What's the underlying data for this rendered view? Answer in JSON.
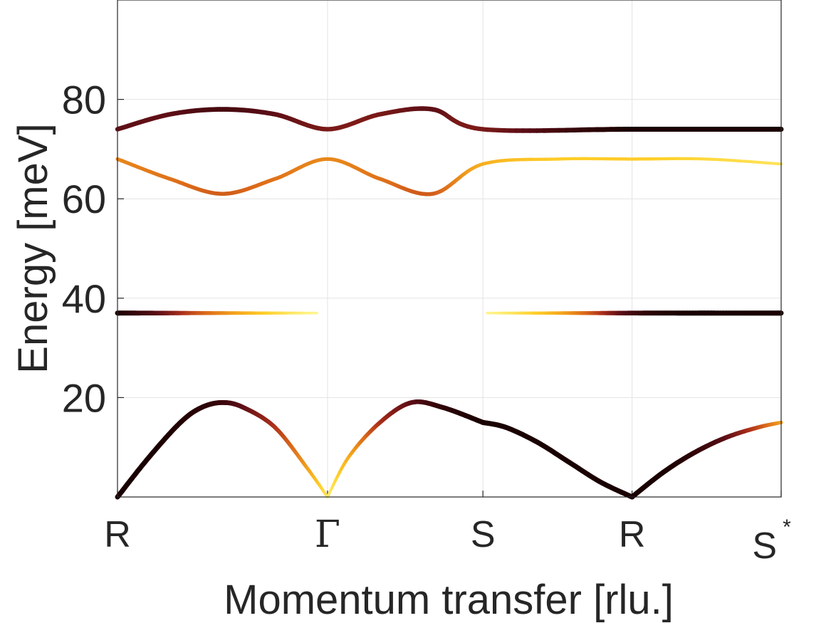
{
  "chart_data": {
    "type": "line",
    "xlabel": "Momentum transfer [rlu.]",
    "ylabel": "Energy [meV]",
    "x_ticks": [
      {
        "x": 0,
        "label": "R",
        "sup": ""
      },
      {
        "x": 1,
        "label": "Γ",
        "sup": ""
      },
      {
        "x": 1.74,
        "label": "S",
        "sup": ""
      },
      {
        "x": 2.45,
        "label": "R",
        "sup": ""
      },
      {
        "x": 3.16,
        "label": "S",
        "sup": "*"
      }
    ],
    "y_ticks": [
      20,
      40,
      60,
      80
    ],
    "xlim": [
      0,
      3.16
    ],
    "ylim": [
      0,
      100
    ],
    "grid": true,
    "colormap": [
      "#ffffc8",
      "#fff07a",
      "#ffd02a",
      "#f4a51c",
      "#dc6a1a",
      "#a82c1a",
      "#5a0d16",
      "#1a0000"
    ],
    "series": [
      {
        "x": [
          0,
          0.15,
          0.3,
          0.4,
          0.5,
          0.6,
          0.75,
          0.9,
          1.0
        ],
        "y": [
          0,
          8,
          15,
          18,
          19,
          18,
          14,
          6,
          0
        ],
        "intensity": [
          1.0,
          1.0,
          0.98,
          0.96,
          0.93,
          0.85,
          0.7,
          0.45,
          0.2
        ]
      },
      {
        "x": [
          1.0,
          1.1,
          1.25,
          1.4,
          1.55,
          1.74
        ],
        "y": [
          0,
          8,
          15,
          19,
          18,
          15
        ],
        "intensity": [
          0.15,
          0.4,
          0.7,
          0.85,
          0.95,
          1.0
        ]
      },
      {
        "x": [
          1.74,
          1.85,
          2.0,
          2.15,
          2.3,
          2.45
        ],
        "y": [
          15,
          14,
          11,
          7,
          3,
          0
        ],
        "intensity": [
          1.0,
          1.0,
          1.0,
          1.0,
          1.0,
          1.0
        ]
      },
      {
        "x": [
          2.45,
          2.6,
          2.75,
          2.9,
          3.05,
          3.16
        ],
        "y": [
          0,
          5,
          9,
          12,
          14,
          15
        ],
        "intensity": [
          1.0,
          1.0,
          0.95,
          0.85,
          0.65,
          0.45
        ]
      },
      {
        "x": [
          0,
          0.2,
          0.4,
          0.6,
          0.75,
          0.95
        ],
        "y": [
          37,
          37,
          37,
          37,
          37,
          37
        ],
        "intensity": [
          1.0,
          0.85,
          0.6,
          0.4,
          0.25,
          0.1
        ]
      },
      {
        "x": [
          1.76,
          1.95,
          2.1,
          2.25,
          2.45,
          2.7,
          3.0,
          3.16
        ],
        "y": [
          37,
          37,
          37,
          37,
          37,
          37,
          37,
          37
        ],
        "intensity": [
          0.1,
          0.25,
          0.4,
          0.6,
          0.9,
          1.0,
          1.0,
          1.0
        ]
      },
      {
        "x": [
          0,
          0.25,
          0.5,
          0.75,
          1.0,
          1.25,
          1.5,
          1.74,
          2.45,
          3.16
        ],
        "y": [
          74,
          77,
          78,
          77,
          74,
          77,
          78,
          74,
          74,
          74
        ],
        "intensity": [
          0.85,
          0.85,
          0.9,
          0.85,
          0.8,
          0.8,
          0.85,
          0.8,
          1.0,
          1.0
        ]
      },
      {
        "x": [
          0,
          0.25,
          0.5,
          0.75,
          1.0,
          1.25,
          1.5,
          1.74,
          2.1,
          2.45,
          2.8,
          3.16
        ],
        "y": [
          68,
          64,
          61,
          64,
          68,
          64,
          61,
          67,
          68,
          68,
          68,
          67
        ],
        "intensity": [
          0.5,
          0.55,
          0.6,
          0.55,
          0.5,
          0.55,
          0.6,
          0.4,
          0.3,
          0.3,
          0.25,
          0.2
        ]
      }
    ]
  }
}
